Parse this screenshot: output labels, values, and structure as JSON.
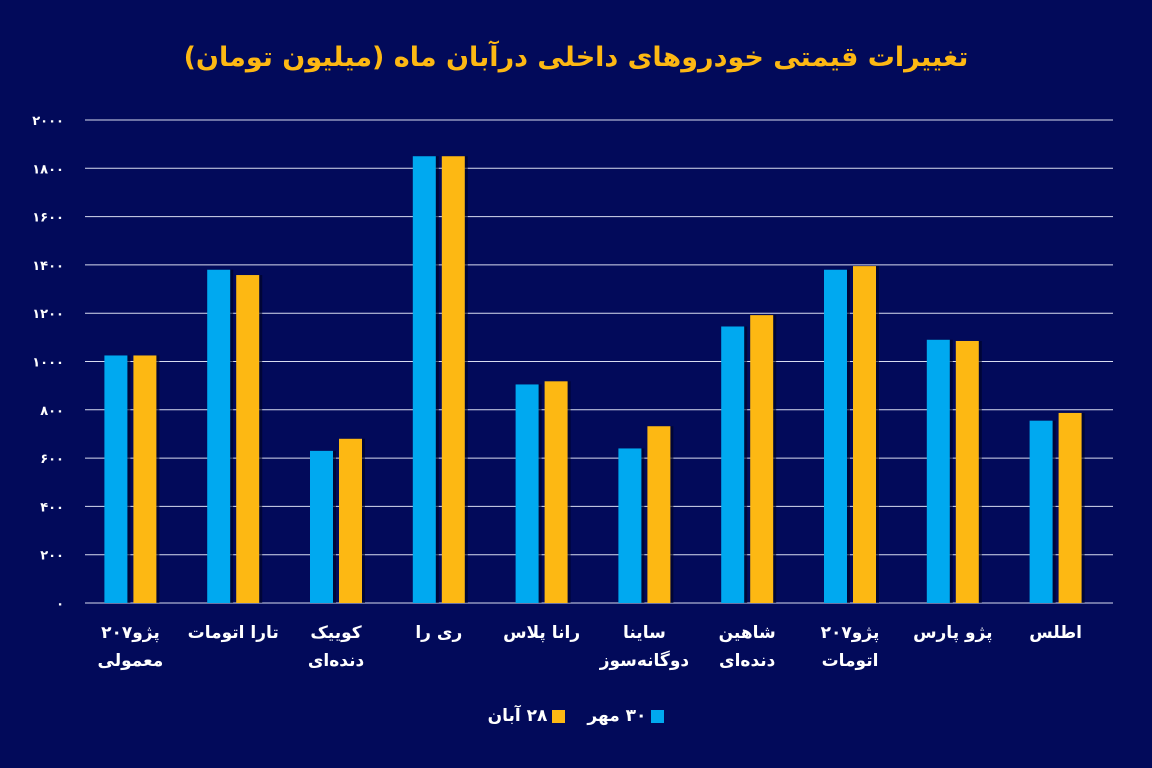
{
  "chart_data": {
    "type": "bar",
    "title": "تغییرات قیمتی خودروهای داخلی درآبان ماه (میلیون تومان)",
    "xlabel": "",
    "ylabel": "",
    "ylim": [
      0,
      2000
    ],
    "yticks": [
      0,
      200,
      400,
      600,
      800,
      1000,
      1200,
      1400,
      1600,
      1800,
      2000
    ],
    "ytick_labels": [
      "۰",
      "۲۰۰",
      "۴۰۰",
      "۶۰۰",
      "۸۰۰",
      "۱۰۰۰",
      "۱۲۰۰",
      "۱۴۰۰",
      "۱۶۰۰",
      "۱۸۰۰",
      "۲۰۰۰"
    ],
    "grid": true,
    "legend_position": "bottom",
    "categories": [
      "پژو۲۰۷\nمعمولی",
      "تارا اتومات",
      "کوییک\nدنده‌ای",
      "ری را",
      "رانا پلاس",
      "ساینا\nدوگانه‌سوز",
      "شاهین\nدنده‌ای",
      "پژو۲۰۷\nاتومات",
      "پژو پارس",
      "اطلس"
    ],
    "series": [
      {
        "name": "۳۰ مهر",
        "color": "#00a9f0",
        "values": [
          1025,
          1380,
          630,
          1850,
          905,
          640,
          1145,
          1380,
          1090,
          755
        ]
      },
      {
        "name": "۲۸ آبان",
        "color": "#fdb813",
        "values": [
          1025,
          1358,
          680,
          1850,
          918,
          732,
          1192,
          1395,
          1085,
          787
        ]
      }
    ]
  }
}
